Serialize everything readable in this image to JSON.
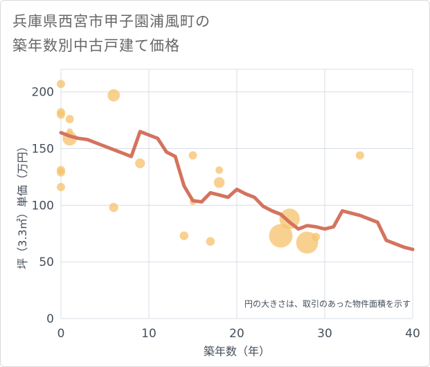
{
  "title_line1": "兵庫県西宮市甲子園浦風町の",
  "title_line2": "築年数別中古戸建て価格",
  "chart_data": {
    "type": "scatter+line",
    "xlabel": "築年数（年）",
    "ylabel": "坪（3.3㎡）単価（万円）",
    "xlim": [
      0,
      40
    ],
    "ylim": [
      0,
      220
    ],
    "xticks": [
      0,
      10,
      20,
      30,
      40
    ],
    "yticks": [
      0,
      50,
      100,
      150,
      200
    ],
    "grid": true,
    "note": "円の大きさは、取引のあった物件面積を示す",
    "colors": {
      "bubble": "#f5c26b",
      "line": "#d4735e",
      "grid": "#d7dde6"
    },
    "bubbles": [
      {
        "x": 0,
        "y": 207,
        "size": 1
      },
      {
        "x": 0,
        "y": 182,
        "size": 1
      },
      {
        "x": 0,
        "y": 180,
        "size": 1
      },
      {
        "x": 0,
        "y": 131,
        "size": 1
      },
      {
        "x": 0,
        "y": 129,
        "size": 1
      },
      {
        "x": 0,
        "y": 116,
        "size": 1
      },
      {
        "x": 1,
        "y": 176,
        "size": 1
      },
      {
        "x": 1,
        "y": 165,
        "size": 0.6
      },
      {
        "x": 1,
        "y": 159,
        "size": 3
      },
      {
        "x": 6,
        "y": 197,
        "size": 2.2
      },
      {
        "x": 6,
        "y": 98,
        "size": 1.2
      },
      {
        "x": 9,
        "y": 137,
        "size": 1.4
      },
      {
        "x": 14,
        "y": 73,
        "size": 1.1
      },
      {
        "x": 15,
        "y": 144,
        "size": 1
      },
      {
        "x": 15,
        "y": 103,
        "size": 0.6
      },
      {
        "x": 17,
        "y": 68,
        "size": 1.1
      },
      {
        "x": 18,
        "y": 131,
        "size": 0.8
      },
      {
        "x": 18,
        "y": 120,
        "size": 1.7
      },
      {
        "x": 25,
        "y": 73,
        "size": 8
      },
      {
        "x": 26,
        "y": 88,
        "size": 6
      },
      {
        "x": 28,
        "y": 67,
        "size": 7
      },
      {
        "x": 29,
        "y": 72,
        "size": 1
      },
      {
        "x": 34,
        "y": 144,
        "size": 1
      }
    ],
    "line": {
      "x": [
        0,
        1,
        2,
        3,
        4,
        5,
        6,
        7,
        8,
        9,
        10,
        11,
        12,
        13,
        14,
        15,
        16,
        17,
        18,
        19,
        20,
        21,
        22,
        23,
        24,
        25,
        26,
        27,
        28,
        29,
        30,
        31,
        32,
        33,
        34,
        35,
        36,
        37,
        38,
        39,
        40
      ],
      "y": [
        164,
        161,
        159,
        158,
        155,
        152,
        149,
        146,
        143,
        165,
        162,
        159,
        147,
        143,
        117,
        104,
        103,
        111,
        109,
        107,
        114,
        110,
        107,
        99,
        95,
        92,
        85,
        79,
        82,
        81,
        79,
        81,
        95,
        93,
        91,
        88,
        85,
        69,
        66,
        63,
        61
      ]
    }
  }
}
